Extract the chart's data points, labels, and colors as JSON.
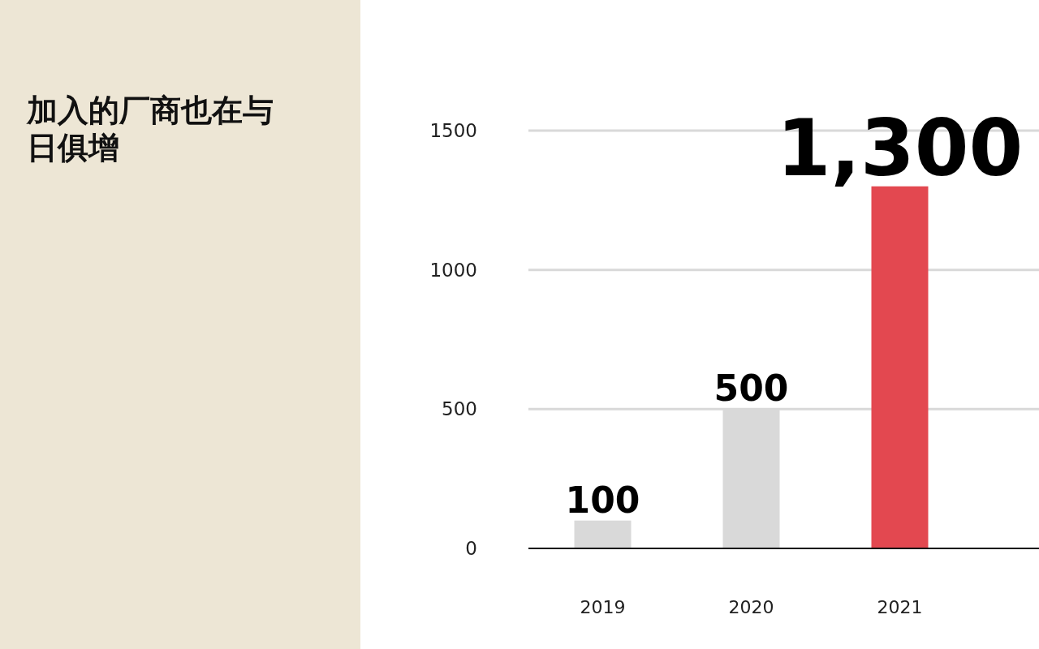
{
  "chart_data": {
    "type": "bar",
    "title": "加入的厂商也在与日俱增",
    "categories": [
      "2019",
      "2020",
      "2021"
    ],
    "values": [
      100,
      500,
      1300
    ],
    "colors": [
      "#d9d9d9",
      "#d9d9d9",
      "#e34850"
    ],
    "value_labels": [
      "100",
      "500",
      "1,300"
    ],
    "ylim": [
      0,
      1500
    ],
    "yticks": [
      0,
      500,
      1000,
      1500
    ],
    "grid": "y"
  }
}
